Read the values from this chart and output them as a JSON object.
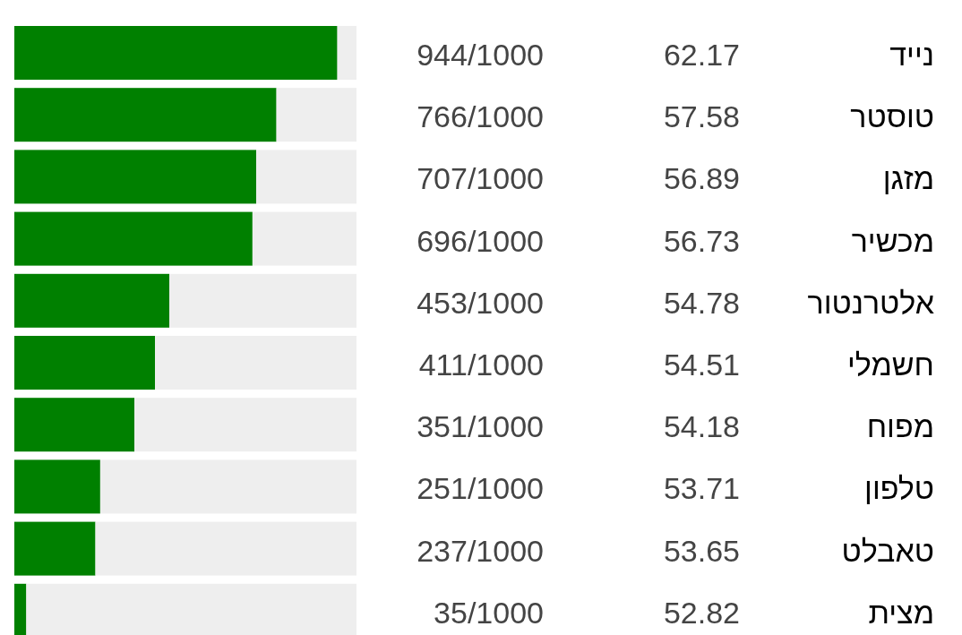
{
  "chart_data": {
    "type": "bar",
    "orientation": "horizontal",
    "stacked": true,
    "tick_labels": "y",
    "xlim": [
      0,
      1000
    ],
    "categories": [
      "נייד",
      "טוסטר",
      "מזגן",
      "מכשיר",
      "אלטרנטור",
      "חשמלי",
      "מפוח",
      "טלפון",
      "טאבלט",
      "מצית"
    ],
    "series": [
      {
        "color": "#008000",
        "values": [
          944,
          766,
          707,
          696,
          453,
          411,
          351,
          251,
          237,
          35
        ],
        "value_labels": [
          "944/1000",
          "766/1000",
          "707/1000",
          "696/1000",
          "453/1000",
          "411/1000",
          "351/1000",
          "251/1000",
          "237/1000",
          "35/1000"
        ]
      },
      {
        "color": "#eeeeee",
        "values": [
          56,
          234,
          293,
          304,
          547,
          589,
          649,
          749,
          763,
          965
        ]
      }
    ],
    "annotations": [
      "62.17",
      "57.58",
      "56.89",
      "56.73",
      "54.78",
      "54.51",
      "54.18",
      "53.71",
      "53.65",
      "52.82"
    ]
  }
}
